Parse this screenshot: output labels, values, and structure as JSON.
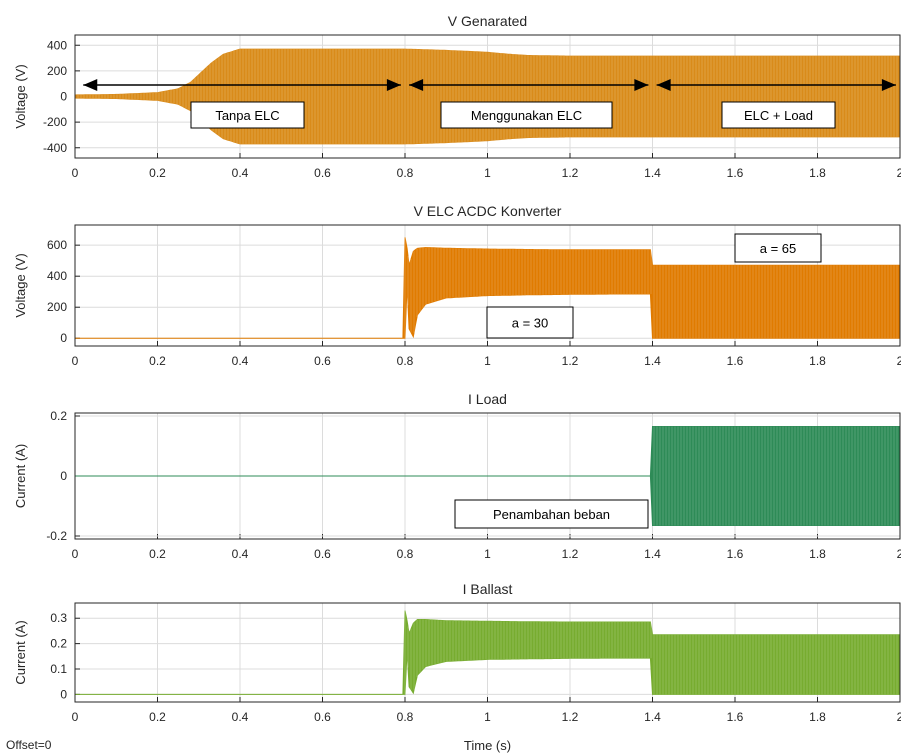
{
  "chart_data": [
    {
      "type": "line",
      "title": "V Genarated",
      "xlabel": "",
      "ylabel": "Voltage (V)",
      "xlim": [
        0,
        2
      ],
      "ylim": [
        -480,
        480
      ],
      "xticks": [
        "0",
        "0.2",
        "0.4",
        "0.6",
        "0.8",
        "1",
        "1.2",
        "1.4",
        "1.6",
        "1.8",
        "2"
      ],
      "yticks": [
        "400",
        "200",
        "0",
        "-200",
        "-400"
      ],
      "grid": true,
      "series": [
        {
          "color": "#d98b1a",
          "envelope": {
            "x": [
              0,
              0.1,
              0.2,
              0.25,
              0.28,
              0.3,
              0.33,
              0.36,
              0.4,
              0.8,
              0.9,
              1.0,
              1.05,
              1.1,
              1.2,
              1.4,
              2.0
            ],
            "upper": [
              12,
              16,
              30,
              60,
              110,
              170,
              260,
              330,
              370,
              370,
              360,
              345,
              330,
              320,
              315,
              315,
              315
            ],
            "lower": [
              -12,
              -16,
              -30,
              -60,
              -110,
              -170,
              -260,
              -330,
              -370,
              -370,
              -360,
              -345,
              -330,
              -320,
              -315,
              -315,
              -315
            ]
          }
        }
      ],
      "annotations": [
        {
          "text": "Tanpa ELC"
        },
        {
          "text": "Menggunakan ELC"
        },
        {
          "text": "ELC + Load"
        }
      ],
      "arrows": [
        {
          "x": [
            0.02,
            0.79
          ],
          "y": 85
        },
        {
          "x": [
            0.81,
            1.39
          ],
          "y": 85
        },
        {
          "x": [
            1.41,
            1.99
          ],
          "y": 85
        }
      ]
    },
    {
      "type": "line",
      "title": "V ELC ACDC Konverter",
      "xlabel": "",
      "ylabel": "Voltage (V)",
      "xlim": [
        0,
        2
      ],
      "ylim": [
        -50,
        730
      ],
      "xticks": [
        "0",
        "0.2",
        "0.4",
        "0.6",
        "0.8",
        "1",
        "1.2",
        "1.4",
        "1.6",
        "1.8",
        "2"
      ],
      "yticks": [
        "600",
        "400",
        "200",
        "0"
      ],
      "grid": true,
      "series": [
        {
          "color": "#e07b00",
          "envelope": {
            "x": [
              0,
              0.799,
              0.8,
              0.805,
              0.81,
              0.82,
              0.83,
              0.85,
              0.9,
              1.0,
              1.1,
              1.2,
              1.3,
              1.399,
              1.4,
              2.0
            ],
            "upper": [
              0,
              0,
              650,
              580,
              470,
              560,
              580,
              585,
              580,
              575,
              572,
              570,
              570,
              570,
              470,
              470
            ],
            "lower": [
              0,
              0,
              0,
              340,
              60,
              10,
              150,
              220,
              260,
              275,
              280,
              283,
              285,
              285,
              0,
              0
            ]
          }
        }
      ],
      "annotations": [
        {
          "text": "a = 30"
        },
        {
          "text": "a = 65"
        }
      ]
    },
    {
      "type": "line",
      "title": "I Load",
      "xlabel": "",
      "ylabel": "Current (A)",
      "xlim": [
        0,
        2
      ],
      "ylim": [
        -0.21,
        0.21
      ],
      "xticks": [
        "0",
        "0.2",
        "0.4",
        "0.6",
        "0.8",
        "1",
        "1.2",
        "1.4",
        "1.6",
        "1.8",
        "2"
      ],
      "yticks": [
        "0.2",
        "0",
        "-0.2"
      ],
      "grid": true,
      "series": [
        {
          "color": "#2e8b57",
          "envelope": {
            "x": [
              0,
              1.399,
              1.4,
              2.0
            ],
            "upper": [
              0,
              0,
              0.165,
              0.165
            ],
            "lower": [
              0,
              0,
              -0.165,
              -0.165
            ]
          }
        }
      ],
      "annotations": [
        {
          "text": "Penambahan beban"
        }
      ]
    },
    {
      "type": "line",
      "title": "I Ballast",
      "xlabel": "Time (s)",
      "ylabel": "Current (A)",
      "xlim": [
        0,
        2
      ],
      "ylim": [
        -0.03,
        0.36
      ],
      "xticks": [
        "0",
        "0.2",
        "0.4",
        "0.6",
        "0.8",
        "1",
        "1.2",
        "1.4",
        "1.6",
        "1.8",
        "2"
      ],
      "yticks": [
        "0.3",
        "0.2",
        "0.1",
        "0"
      ],
      "grid": true,
      "series": [
        {
          "color": "#77ac30",
          "envelope": {
            "x": [
              0,
              0.799,
              0.8,
              0.805,
              0.81,
              0.82,
              0.83,
              0.85,
              0.9,
              1.0,
              1.1,
              1.2,
              1.3,
              1.399,
              1.4,
              2.0
            ],
            "upper": [
              0,
              0,
              0.33,
              0.29,
              0.24,
              0.28,
              0.295,
              0.295,
              0.29,
              0.288,
              0.286,
              0.285,
              0.285,
              0.285,
              0.235,
              0.235
            ],
            "lower": [
              0,
              0,
              0,
              0.17,
              0.03,
              0.005,
              0.075,
              0.11,
              0.13,
              0.138,
              0.14,
              0.142,
              0.143,
              0.143,
              0,
              0
            ]
          }
        }
      ]
    }
  ],
  "footer": {
    "offset_label": "Offset=0"
  }
}
